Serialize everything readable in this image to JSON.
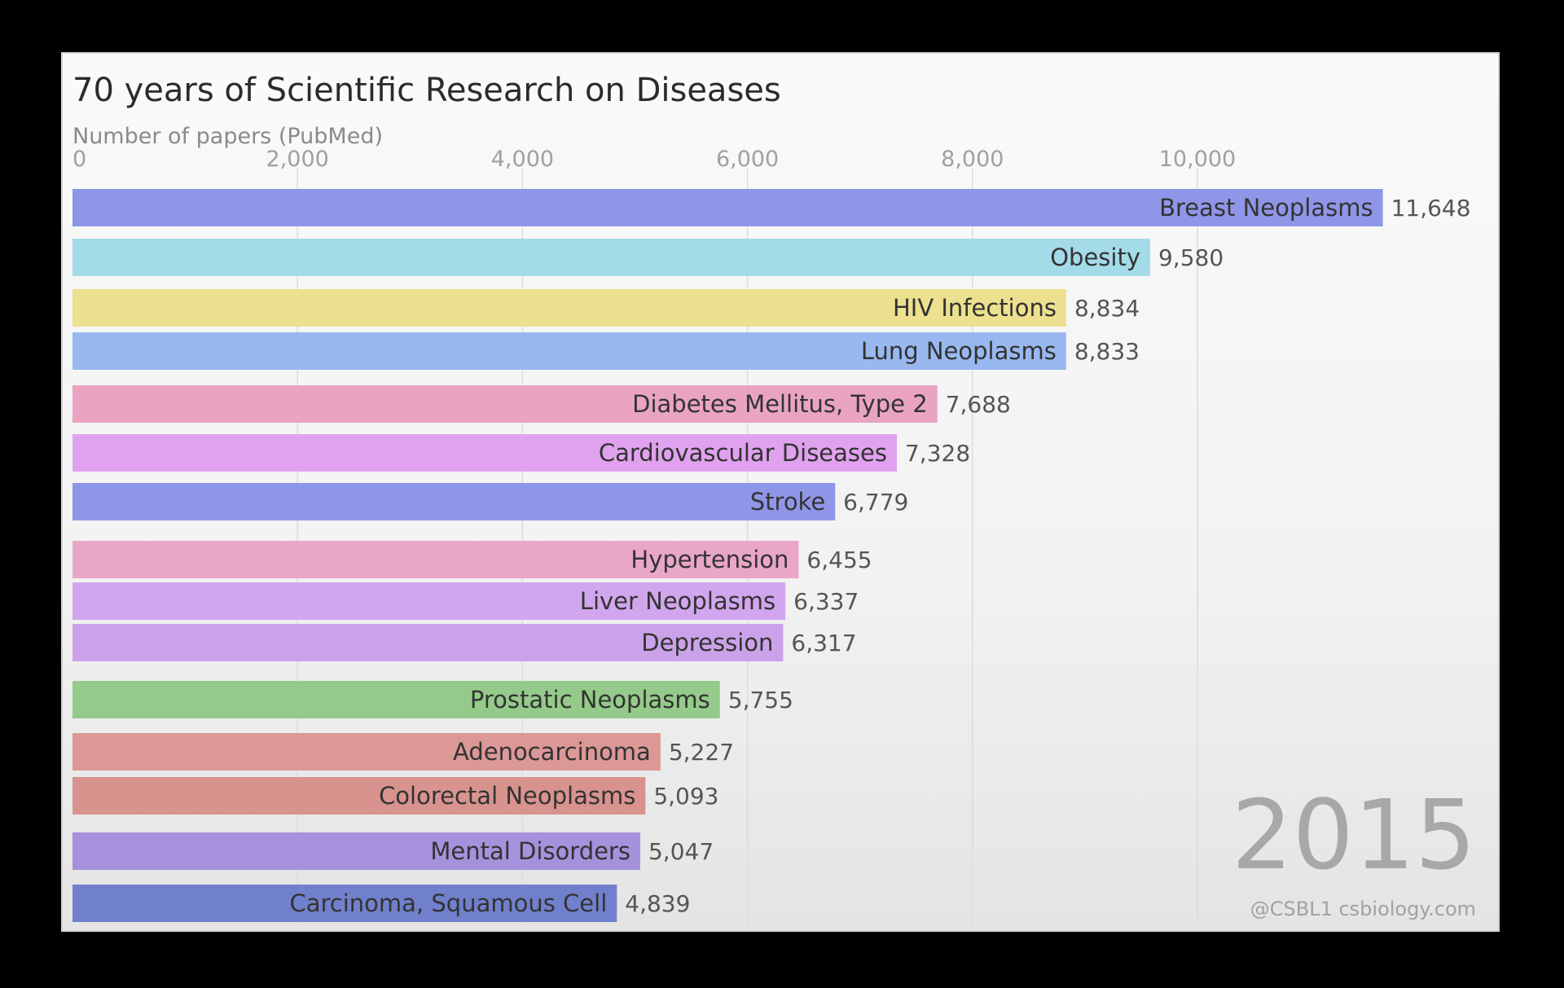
{
  "chart_data": {
    "type": "bar",
    "orientation": "horizontal",
    "title": "70 years of Scientific Research on Diseases",
    "subtitle": "Number of papers (PubMed)",
    "xlim": [
      0,
      12000
    ],
    "xticks": [
      0,
      2000,
      4000,
      6000,
      8000,
      10000
    ],
    "xtick_labels": [
      "0",
      "2,000",
      "4,000",
      "6,000",
      "8,000",
      "10,000"
    ],
    "grid": true,
    "year": "2015",
    "credit": "@CSBL1 csbiology.com",
    "bars": [
      {
        "label": "Breast Neoplasms",
        "value": 11648,
        "value_label": "11,648",
        "color": "#8f96e8"
      },
      {
        "label": "Obesity",
        "value": 9580,
        "value_label": "9,580",
        "color": "#a4dbe8"
      },
      {
        "label": "HIV Infections",
        "value": 8834,
        "value_label": "8,834",
        "color": "#ede08f"
      },
      {
        "label": "Lung Neoplasms",
        "value": 8833,
        "value_label": "8,833",
        "color": "#98b8ef"
      },
      {
        "label": "Diabetes Mellitus, Type 2",
        "value": 7688,
        "value_label": "7,688",
        "color": "#eaa4c2"
      },
      {
        "label": "Cardiovascular Diseases",
        "value": 7328,
        "value_label": "7,328",
        "color": "#e0a2ee"
      },
      {
        "label": "Stroke",
        "value": 6779,
        "value_label": "6,779",
        "color": "#8f96e8"
      },
      {
        "label": "Hypertension",
        "value": 6455,
        "value_label": "6,455",
        "color": "#eaa6c8"
      },
      {
        "label": "Liver Neoplasms",
        "value": 6337,
        "value_label": "6,337",
        "color": "#d2a6ee"
      },
      {
        "label": "Depression",
        "value": 6317,
        "value_label": "6,317",
        "color": "#cba2ea"
      },
      {
        "label": "Prostatic Neoplasms",
        "value": 5755,
        "value_label": "5,755",
        "color": "#95cb8a"
      },
      {
        "label": "Adenocarcinoma",
        "value": 5227,
        "value_label": "5,227",
        "color": "#dc9797"
      },
      {
        "label": "Colorectal Neoplasms",
        "value": 5093,
        "value_label": "5,093",
        "color": "#d8938f"
      },
      {
        "label": "Mental Disorders",
        "value": 5047,
        "value_label": "5,047",
        "color": "#a591dc"
      },
      {
        "label": "Carcinoma, Squamous Cell",
        "value": 4839,
        "value_label": "4,839",
        "color": "#7180cc"
      }
    ]
  }
}
